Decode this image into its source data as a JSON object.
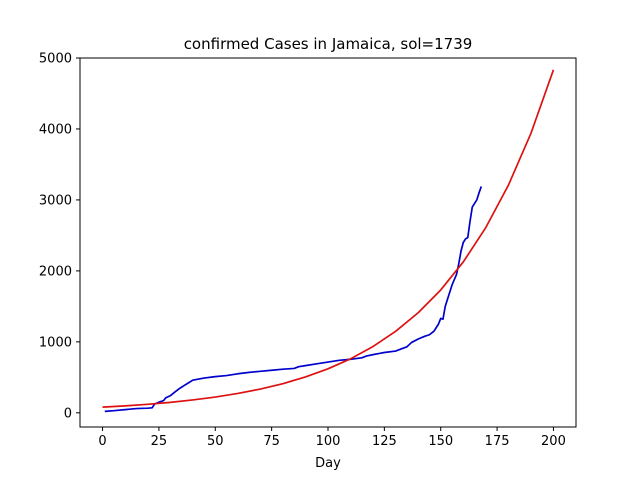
{
  "chart_data": {
    "type": "line",
    "title": "confirmed Cases in Jamaica, sol=1739",
    "xlabel": "Day",
    "ylabel": "",
    "xlim": [
      -10,
      210
    ],
    "ylim": [
      -200,
      5000
    ],
    "xticks": [
      0,
      25,
      50,
      75,
      100,
      125,
      150,
      175,
      200
    ],
    "yticks": [
      0,
      1000,
      2000,
      3000,
      4000,
      5000
    ],
    "grid": false,
    "legend": "none",
    "series": [
      {
        "color": "#0000cc",
        "x": [
          1,
          5,
          10,
          15,
          20,
          22,
          23,
          25,
          27,
          28,
          30,
          32,
          34,
          35,
          36,
          38,
          40,
          45,
          50,
          55,
          60,
          65,
          70,
          75,
          80,
          85,
          87,
          90,
          95,
          100,
          105,
          110,
          115,
          117,
          120,
          125,
          130,
          132,
          135,
          137,
          140,
          143,
          145,
          147,
          149,
          150,
          151,
          152,
          153,
          155,
          157,
          158,
          159,
          160,
          161,
          162,
          163,
          164,
          165,
          166,
          167,
          168
        ],
        "y": [
          20,
          30,
          45,
          60,
          65,
          70,
          120,
          150,
          170,
          210,
          240,
          290,
          340,
          360,
          380,
          420,
          460,
          490,
          510,
          525,
          550,
          570,
          585,
          600,
          615,
          625,
          650,
          665,
          690,
          715,
          740,
          755,
          775,
          800,
          820,
          850,
          870,
          895,
          930,
          990,
          1040,
          1080,
          1100,
          1150,
          1250,
          1330,
          1320,
          1500,
          1600,
          1800,
          1950,
          2100,
          2280,
          2400,
          2450,
          2470,
          2700,
          2900,
          2950,
          3000,
          3100,
          3190
        ]
      },
      {
        "color": "#dd1111",
        "x": [
          0,
          10,
          20,
          30,
          40,
          50,
          60,
          70,
          80,
          90,
          100,
          110,
          120,
          130,
          140,
          150,
          160,
          170,
          180,
          190,
          200
        ],
        "y": [
          80,
          98,
          120,
          147,
          181,
          222,
          273,
          335,
          411,
          505,
          620,
          761,
          935,
          1148,
          1410,
          1731,
          2126,
          2611,
          3206,
          3937,
          4834
        ]
      }
    ]
  }
}
